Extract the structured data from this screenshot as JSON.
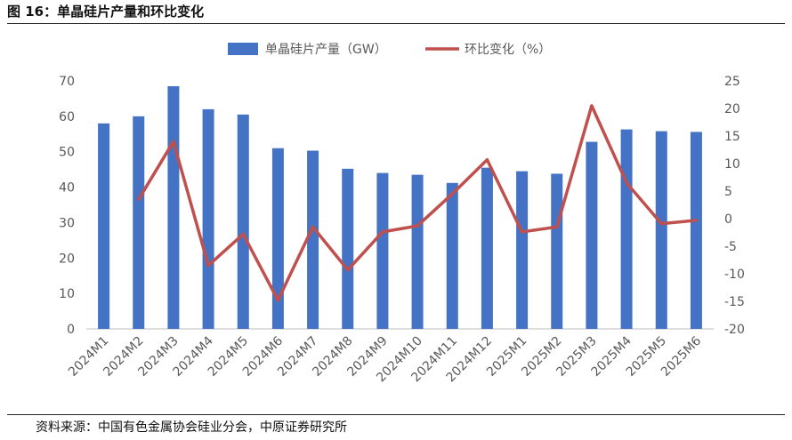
{
  "figure_label": "图 16：单晶硅片产量和环比变化",
  "source": "资料来源：中国有色金属协会硅业分会，中原证券研究所",
  "chart_data": {
    "type": "bar",
    "categories": [
      "2024M1",
      "2024M2",
      "2024M3",
      "2024M4",
      "2024M5",
      "2024M6",
      "2024M7",
      "2024M8",
      "2024M9",
      "2024M10",
      "2024M11",
      "2024M12",
      "2025M1",
      "2025M2",
      "2025M3",
      "2025M4",
      "2025M5",
      "2025M6"
    ],
    "series": [
      {
        "name": "单晶硅片产量（GW）",
        "type": "bar",
        "axis": "left",
        "color": "#4472C4",
        "values": [
          58,
          60,
          68.5,
          62,
          60.5,
          51,
          50.3,
          45.2,
          44,
          43.5,
          41.2,
          45.5,
          44.5,
          43.8,
          52.8,
          56.3,
          55.8,
          55.6
        ]
      },
      {
        "name": "环比变化（%）",
        "type": "line",
        "axis": "right",
        "color": "#C0504D",
        "values": [
          null,
          3.5,
          14,
          -8.5,
          -2.8,
          -14.8,
          -1.5,
          -9.3,
          -2.4,
          -1.3,
          4.5,
          10.7,
          -2.4,
          -1.5,
          20.5,
          6.5,
          -0.9,
          -0.3
        ]
      }
    ],
    "y_left": {
      "min": 0,
      "max": 70,
      "ticks": [
        0,
        10,
        20,
        30,
        40,
        50,
        60,
        70
      ]
    },
    "y_right": {
      "min": -20,
      "max": 25,
      "ticks": [
        -20,
        -15,
        -10,
        -5,
        0,
        5,
        10,
        15,
        20,
        25
      ]
    },
    "legend_position": "top-center",
    "grid": false
  }
}
